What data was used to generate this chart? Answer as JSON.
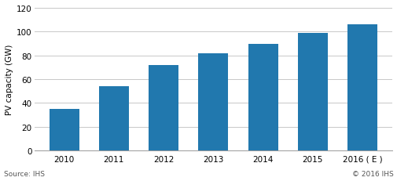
{
  "categories": [
    "2010",
    "2011",
    "2012",
    "2013",
    "2014",
    "2015",
    "2016 ( E )"
  ],
  "values": [
    35,
    54,
    72,
    82,
    90,
    99,
    106
  ],
  "bar_color": "#2178ae",
  "ylabel": "PV capacity (GW)",
  "ylim": [
    0,
    120
  ],
  "yticks": [
    0,
    20,
    40,
    60,
    80,
    100,
    120
  ],
  "source_left": "Source: IHS",
  "source_right": "© 2016 IHS",
  "background_color": "#ffffff",
  "grid_color": "#c8c8c8",
  "bar_width": 0.6
}
